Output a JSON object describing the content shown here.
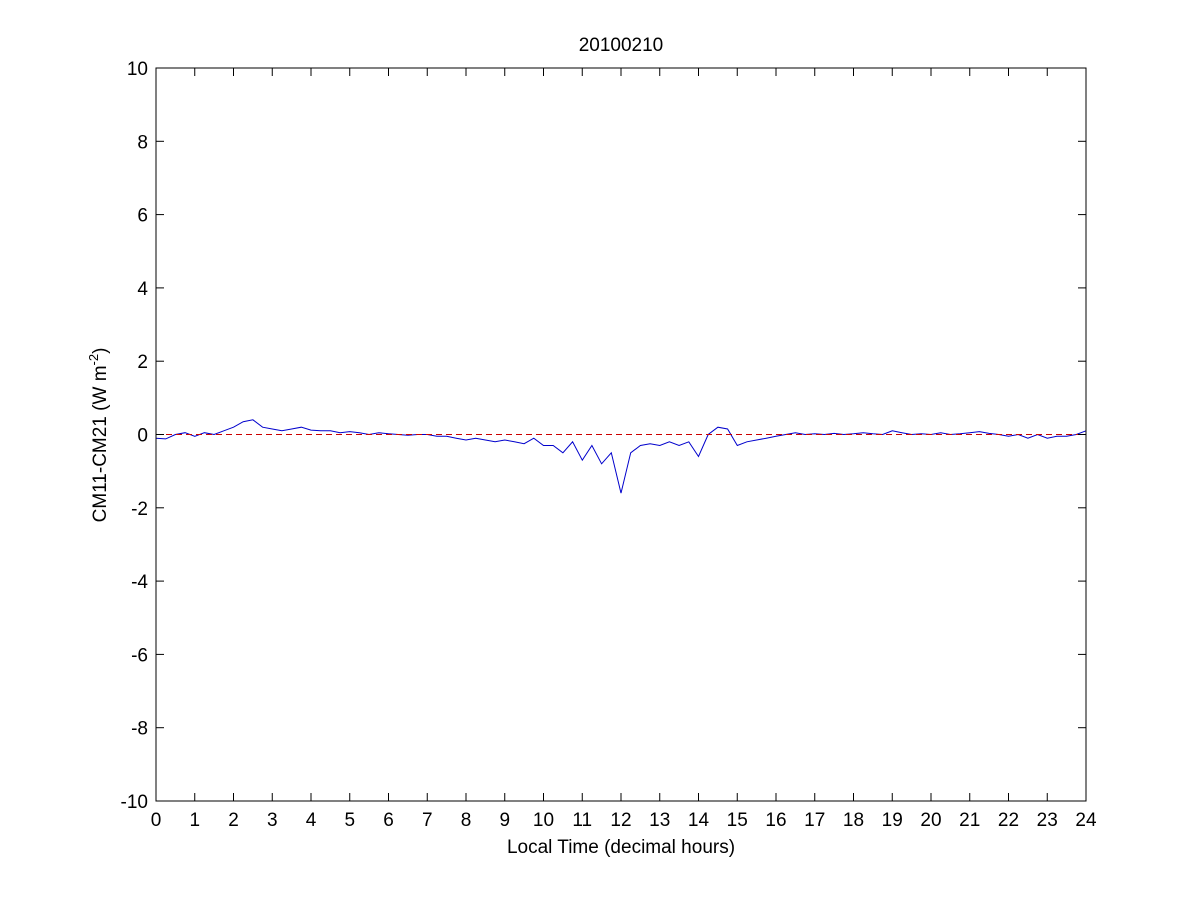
{
  "chart_data": {
    "type": "line",
    "title": "20100210",
    "xlabel": "Local Time (decimal hours)",
    "ylabel": {
      "base": "CM11-CM21 (W m",
      "sup": "-2",
      "end": ")"
    },
    "xlim": [
      0,
      24
    ],
    "ylim": [
      -10,
      10
    ],
    "xticks": [
      0,
      1,
      2,
      3,
      4,
      5,
      6,
      7,
      8,
      9,
      10,
      11,
      12,
      13,
      14,
      15,
      16,
      17,
      18,
      19,
      20,
      21,
      22,
      23,
      24
    ],
    "yticks": [
      10,
      8,
      6,
      4,
      2,
      0,
      -2,
      -4,
      -6,
      -8,
      -10
    ],
    "grid": false,
    "series": [
      {
        "color": "#0000cc",
        "style": "solid",
        "x": [
          0.0,
          0.25,
          0.5,
          0.75,
          1.0,
          1.25,
          1.5,
          1.75,
          2.0,
          2.25,
          2.5,
          2.75,
          3.0,
          3.25,
          3.5,
          3.75,
          4.0,
          4.25,
          4.5,
          4.75,
          5.0,
          5.25,
          5.5,
          5.75,
          6.0,
          6.25,
          6.5,
          6.75,
          7.0,
          7.25,
          7.5,
          7.75,
          8.0,
          8.25,
          8.5,
          8.75,
          9.0,
          9.25,
          9.5,
          9.75,
          10.0,
          10.25,
          10.5,
          10.75,
          11.0,
          11.25,
          11.5,
          11.75,
          12.0,
          12.25,
          12.5,
          12.75,
          13.0,
          13.25,
          13.5,
          13.75,
          14.0,
          14.25,
          14.5,
          14.75,
          15.0,
          15.25,
          15.5,
          15.75,
          16.0,
          16.25,
          16.5,
          16.75,
          17.0,
          17.25,
          17.5,
          17.75,
          18.0,
          18.25,
          18.5,
          18.75,
          19.0,
          19.25,
          19.5,
          19.75,
          20.0,
          20.25,
          20.5,
          20.75,
          21.0,
          21.25,
          21.5,
          21.75,
          22.0,
          22.25,
          22.5,
          22.75,
          23.0,
          23.25,
          23.5,
          23.75,
          24.0
        ],
        "y": [
          -0.1,
          -0.12,
          0.0,
          0.05,
          -0.05,
          0.05,
          0.0,
          0.1,
          0.2,
          0.35,
          0.4,
          0.2,
          0.15,
          0.1,
          0.15,
          0.2,
          0.12,
          0.1,
          0.1,
          0.05,
          0.08,
          0.05,
          0.0,
          0.05,
          0.02,
          0.0,
          -0.02,
          0.0,
          0.0,
          -0.05,
          -0.05,
          -0.1,
          -0.15,
          -0.1,
          -0.15,
          -0.2,
          -0.15,
          -0.2,
          -0.25,
          -0.1,
          -0.3,
          -0.3,
          -0.5,
          -0.2,
          -0.7,
          -0.3,
          -0.8,
          -0.5,
          -1.6,
          -0.5,
          -0.3,
          -0.25,
          -0.3,
          -0.2,
          -0.3,
          -0.2,
          -0.6,
          0.0,
          0.2,
          0.15,
          -0.3,
          -0.2,
          -0.15,
          -0.1,
          -0.05,
          0.0,
          0.05,
          0.0,
          0.02,
          0.0,
          0.03,
          0.0,
          0.02,
          0.05,
          0.02,
          0.0,
          0.1,
          0.05,
          0.0,
          0.02,
          0.0,
          0.05,
          0.0,
          0.02,
          0.05,
          0.08,
          0.03,
          0.0,
          -0.05,
          0.0,
          -0.1,
          0.0,
          -0.1,
          -0.05,
          -0.05,
          0.0,
          0.1
        ]
      },
      {
        "color": "#cc0000",
        "style": "dashed",
        "x": [
          0,
          24
        ],
        "y": [
          0,
          0
        ]
      }
    ]
  }
}
